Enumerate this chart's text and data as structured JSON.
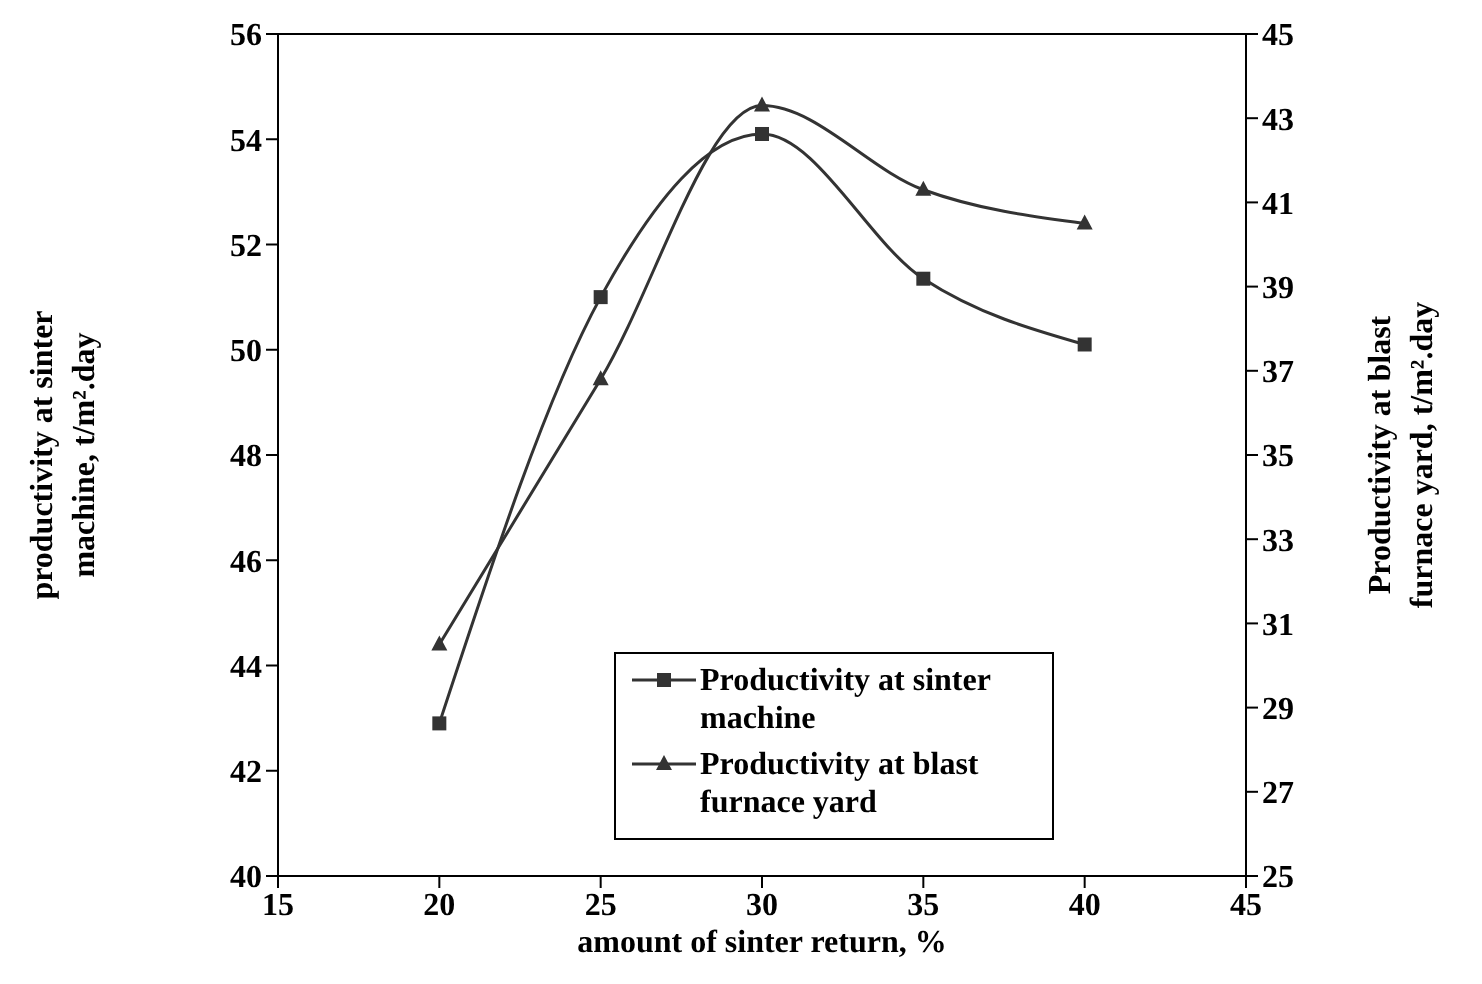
{
  "chart_data": {
    "type": "line",
    "xlabel": "amount of sinter return, %",
    "ylabel": "productivity at sinter\nmachine, t/m².day",
    "y2label": "Productivity at blast\nfurnace yard, t/m².day",
    "x": [
      20,
      25,
      30,
      35,
      40
    ],
    "series": [
      {
        "name": "Productivity at sinter machine",
        "color": "#333333",
        "marker": "square",
        "values": [
          42.9,
          51.0,
          54.1,
          51.35,
          50.1
        ]
      },
      {
        "name": "Productivity at blast furnace yard",
        "color": "#333333",
        "marker": "triangle",
        "axis": "y2",
        "values": [
          30.5,
          36.8,
          43.3,
          41.3,
          40.5
        ]
      }
    ],
    "xlim": [
      15,
      45
    ],
    "xticks": [
      15,
      20,
      25,
      30,
      35,
      40,
      45
    ],
    "ylim": [
      40,
      56
    ],
    "yticks": [
      40,
      42,
      44,
      46,
      48,
      50,
      52,
      54,
      56
    ],
    "y2lim": [
      25,
      45
    ],
    "y2ticks": [
      25,
      27,
      29,
      31,
      33,
      35,
      37,
      39,
      41,
      43,
      45
    ],
    "legend": "bottom right",
    "grid": false,
    "line_style": "solid"
  }
}
